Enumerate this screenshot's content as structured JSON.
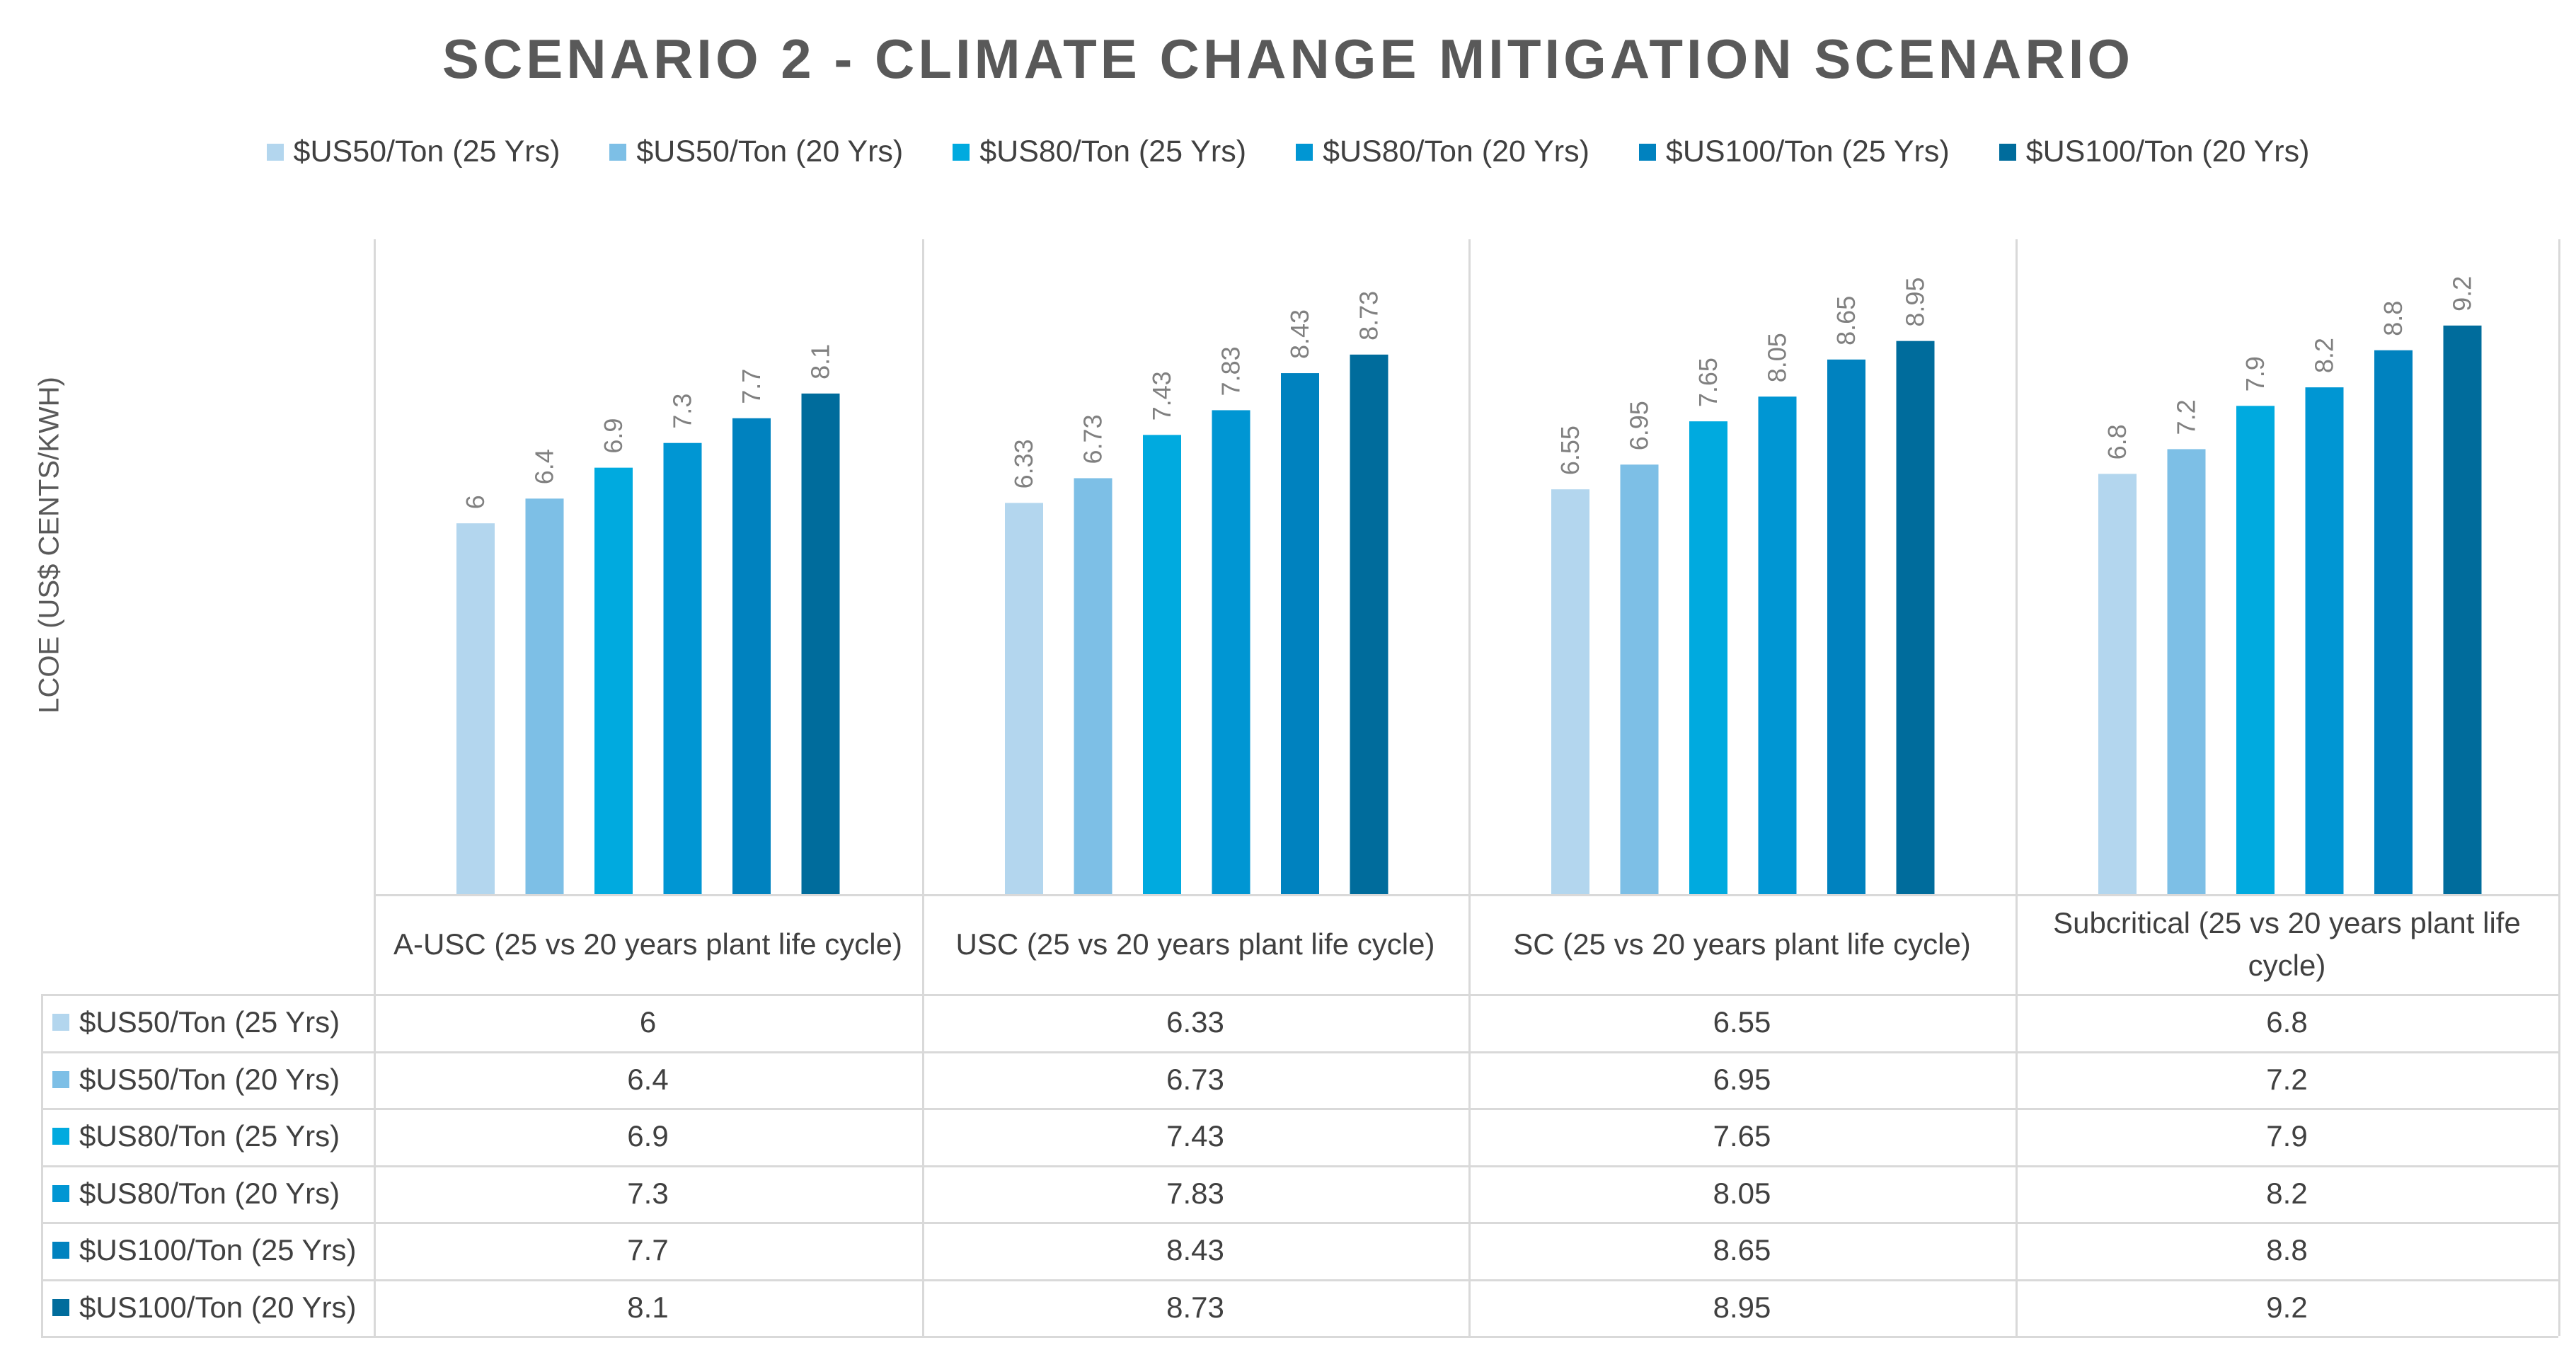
{
  "chart_data": {
    "type": "bar",
    "title": "SCENARIO 2 - CLIMATE CHANGE MITIGATION SCENARIO",
    "ylabel": "LCOE (US$ CENTS/KWH)",
    "xlabel": "",
    "ylim": [
      0,
      10
    ],
    "legend_position": "top",
    "categories": [
      "A-USC (25 vs 20 years plant life cycle)",
      "USC (25 vs 20 years plant life cycle)",
      "SC (25 vs 20 years plant life cycle)",
      "Subcritical (25 vs 20 years plant life cycle)"
    ],
    "series": [
      {
        "name": "$US50/Ton (25 Yrs)",
        "color": "#b3d6ee",
        "values": [
          6,
          6.33,
          6.55,
          6.8
        ],
        "labels": [
          "6",
          "6.33",
          "6.55",
          "6.8"
        ]
      },
      {
        "name": "$US50/Ton (20 Yrs)",
        "color": "#7dbfe6",
        "values": [
          6.4,
          6.73,
          6.95,
          7.2
        ],
        "labels": [
          "6.4",
          "6.73",
          "6.95",
          "7.2"
        ]
      },
      {
        "name": "$US80/Ton (25 Yrs)",
        "color": "#00aadf",
        "values": [
          6.9,
          7.43,
          7.65,
          7.9
        ],
        "labels": [
          "6.9",
          "7.43",
          "7.65",
          "7.9"
        ]
      },
      {
        "name": "$US80/Ton (20 Yrs)",
        "color": "#0096d3",
        "values": [
          7.3,
          7.83,
          8.05,
          8.2
        ],
        "labels": [
          "7.3",
          "7.83",
          "8.05",
          "8.2"
        ]
      },
      {
        "name": "$US100/Ton (25 Yrs)",
        "color": "#0082bf",
        "values": [
          7.7,
          8.43,
          8.65,
          8.8
        ],
        "labels": [
          "7.7",
          "8.43",
          "8.65",
          "8.8"
        ]
      },
      {
        "name": "$US100/Ton (20 Yrs)",
        "color": "#006c9c",
        "values": [
          8.1,
          8.73,
          8.95,
          9.2
        ],
        "labels": [
          "8.1",
          "8.73",
          "8.95",
          "9.2"
        ]
      }
    ]
  }
}
